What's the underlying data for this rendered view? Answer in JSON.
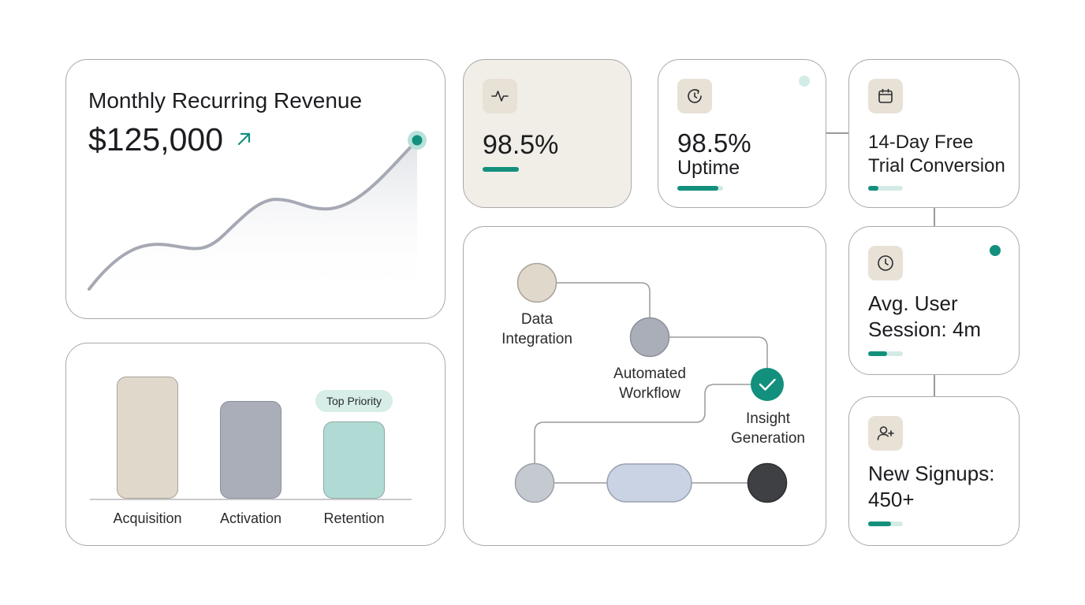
{
  "colors": {
    "accent": "#13907d",
    "bar_beige": "#e1d8cc",
    "bar_gray": "#a9aeb9",
    "bar_mint": "#b0dbd4",
    "node_beige": "#e1d8cc",
    "node_gray": "#a9aeb9",
    "node_light": "#c5c9d0",
    "node_pill": "#c9d3e3",
    "node_dark": "#3e4043"
  },
  "mrr": {
    "title": "Monthly Recurring Revenue",
    "value": "$125,000",
    "trend_icon": "arrow-up-right-icon"
  },
  "tiles": {
    "health": {
      "icon": "activity-pulse-icon",
      "value": "98.5%",
      "progress": 0.55
    },
    "uptime": {
      "icon": "refresh-timer-icon",
      "value": "98.5%",
      "label": "Uptime",
      "progress": 0.9
    },
    "trial": {
      "icon": "calendar-icon",
      "line1": "14-Day Free",
      "line2": "Trial Conversion",
      "progress": 0.3
    },
    "session": {
      "icon": "clock-icon",
      "line1": "Avg. User",
      "line2": "Session: 4m",
      "progress": 0.55
    },
    "signups": {
      "icon": "user-add-icon",
      "line1": "New Signups:",
      "line2": "450+",
      "progress": 0.65
    }
  },
  "funnel": {
    "categories": [
      "Acquisition",
      "Activation",
      "Retention"
    ],
    "badge": "Top Priority"
  },
  "workflow": {
    "step1_line1": "Data",
    "step1_line2": "Integration",
    "step2_line1": "Automated",
    "step2_line2": "Workflow",
    "step3_line1": "Insight",
    "step3_line2": "Generation"
  }
}
